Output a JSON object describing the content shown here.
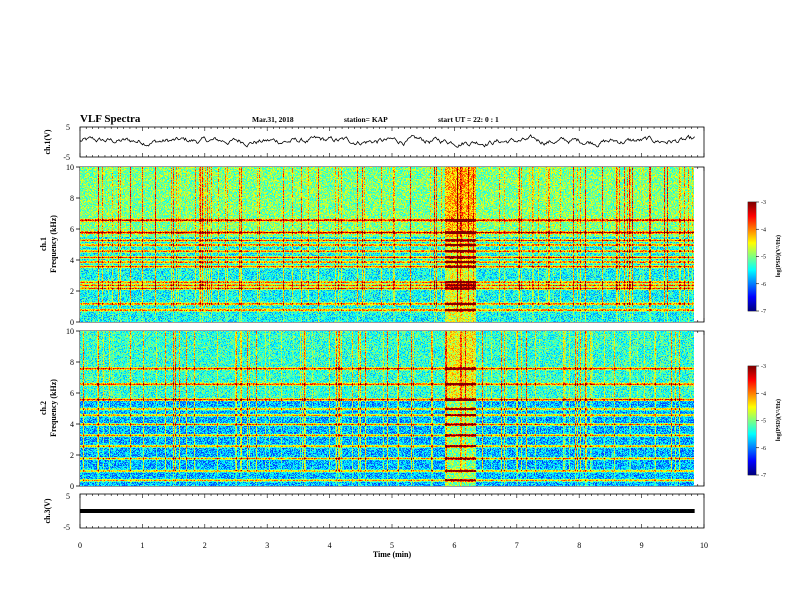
{
  "header": {
    "title": "VLF Spectra",
    "date": "Mar.31, 2018",
    "station": "station= KAP",
    "start_time": "start  UT =   22: 0  : 1"
  },
  "colors": {
    "background": "#ffffff",
    "axes": "#000000",
    "waveform": "#000000"
  },
  "chart_data": [
    {
      "type": "line",
      "panel": "ch1-waveform",
      "ylabel": "ch.1(V)",
      "ylim": [
        -5,
        5
      ],
      "yticks": [
        "5",
        "-5"
      ],
      "xlim": [
        0,
        10
      ],
      "x_end": 9.85,
      "description_values": {
        "mean": 0.3,
        "spread": 1.6
      },
      "grid": false
    },
    {
      "type": "heatmap",
      "panel": "ch1-spectrogram",
      "ylabel": "ch.1",
      "ylabel2": "Frequency (kHz)",
      "ylim": [
        0,
        10
      ],
      "yticks": [
        "0",
        "2",
        "4",
        "6",
        "8",
        "10"
      ],
      "xlim": [
        0,
        10
      ],
      "x_end": 9.85,
      "colorbar": {
        "label": "log(PSD)(V²/Hz)",
        "range": [
          -7,
          -3
        ],
        "ticks": [
          "-3",
          "-4",
          "-5",
          "-6",
          "-7"
        ]
      },
      "bands_khz": [
        0.8,
        1.2,
        2.2,
        2.4,
        2.6,
        3.6,
        3.9,
        4.2,
        4.6,
        5.0,
        5.3,
        5.8,
        6.6
      ],
      "burst_time_min": [
        5.85,
        6.35
      ]
    },
    {
      "type": "heatmap",
      "panel": "ch2-spectrogram",
      "ylabel": "ch.2",
      "ylabel2": "Frequency (kHz)",
      "ylim": [
        0,
        10
      ],
      "yticks": [
        "0",
        "2",
        "4",
        "6",
        "8",
        "10"
      ],
      "xlim": [
        0,
        10
      ],
      "x_end": 9.85,
      "colorbar": {
        "label": "log(PSD)(V²/Hz)",
        "range": [
          -7,
          -3
        ],
        "ticks": [
          "-3",
          "-4",
          "-5",
          "-6",
          "-7"
        ]
      },
      "bands_khz": [
        0.4,
        1.0,
        1.8,
        2.6,
        3.3,
        4.0,
        4.6,
        5.0,
        5.6,
        6.6,
        7.6
      ],
      "burst_time_min": [
        5.85,
        6.35
      ]
    },
    {
      "type": "line",
      "panel": "ch3-waveform",
      "ylabel": "ch.3(V)",
      "ylim": [
        -5,
        5
      ],
      "yticks": [
        "5",
        "-5"
      ],
      "xlim": [
        0,
        10
      ],
      "x_end": 9.85,
      "flat_value": 0,
      "xlabel": "Time  (min)",
      "xticks": [
        "0",
        "1",
        "2",
        "3",
        "4",
        "5",
        "6",
        "7",
        "8",
        "9",
        "10"
      ],
      "grid": false
    }
  ]
}
